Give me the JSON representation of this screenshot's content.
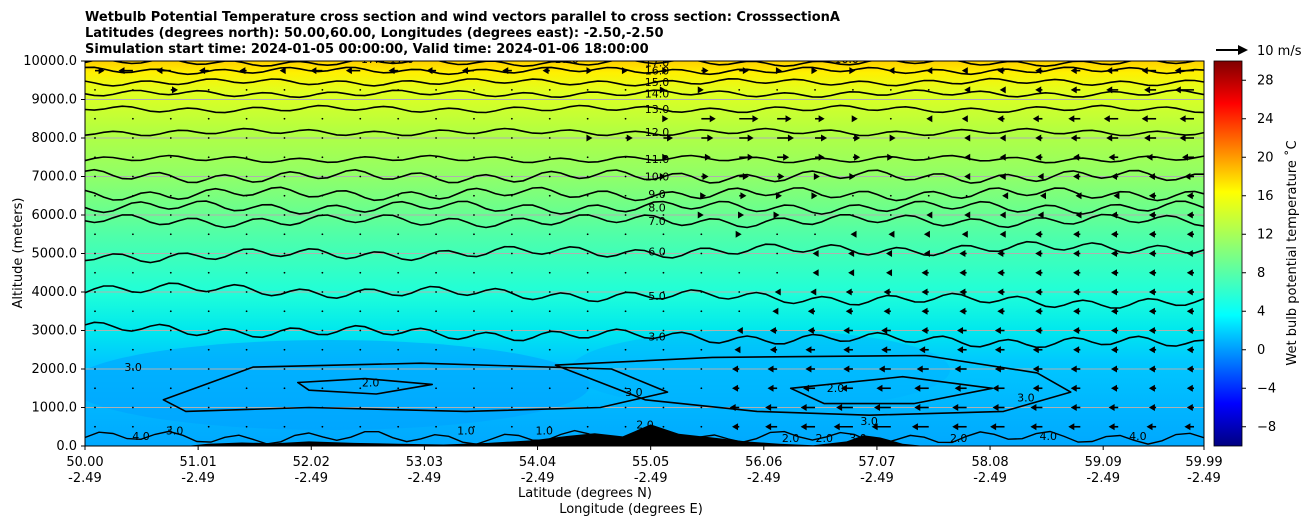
{
  "chart_data": {
    "type": "heatmap",
    "title_lines": [
      "Wetbulb Potential Temperature cross section and wind vectors parallel to cross section: CrosssectionA",
      "Latitudes (degrees north): 50.00,60.00, Longitudes (degrees east): -2.50,-2.50",
      "Simulation start time: 2024-01-05 00:00:00, Valid time: 2024-01-06 18:00:00"
    ],
    "ylabel": "Altitude (meters)",
    "xlabel": "Latitude (degrees N)",
    "xlabel2": "Longitude (degrees E)",
    "x_ticks": [
      {
        "lat": "50.00",
        "lon": "-2.49"
      },
      {
        "lat": "51.01",
        "lon": "-2.49"
      },
      {
        "lat": "52.02",
        "lon": "-2.49"
      },
      {
        "lat": "53.03",
        "lon": "-2.49"
      },
      {
        "lat": "54.04",
        "lon": "-2.49"
      },
      {
        "lat": "55.05",
        "lon": "-2.49"
      },
      {
        "lat": "56.06",
        "lon": "-2.49"
      },
      {
        "lat": "57.07",
        "lon": "-2.49"
      },
      {
        "lat": "58.08",
        "lon": "-2.49"
      },
      {
        "lat": "59.09",
        "lon": "-2.49"
      },
      {
        "lat": "59.99",
        "lon": "-2.49"
      }
    ],
    "xlim": [
      50.0,
      59.99
    ],
    "y_ticks": [
      "0.0",
      "1000.0",
      "2000.0",
      "3000.0",
      "4000.0",
      "5000.0",
      "6000.0",
      "7000.0",
      "8000.0",
      "9000.0",
      "10000.0"
    ],
    "ylim": [
      0,
      10000
    ],
    "grid": "horizontal",
    "colorbar": {
      "label": "Wet bulb potential temperature ˚C",
      "ticks": [
        "28",
        "24",
        "20",
        "16",
        "12",
        "8",
        "4",
        "0",
        "−4",
        "−8"
      ],
      "range": [
        -10,
        30
      ],
      "colormap": "jet"
    },
    "quiver_key": {
      "label": "10 m/s"
    },
    "contours": [
      {
        "value": 17.0,
        "label": "17.0",
        "alt": 9960
      },
      {
        "value": 16.0,
        "label": "16.0",
        "alt": 9750
      },
      {
        "value": 15.0,
        "label": "15.0",
        "alt": 9450
      },
      {
        "value": 14.0,
        "label": "14.0",
        "alt": 9150
      },
      {
        "value": 13.0,
        "label": "13.0",
        "alt": 8750
      },
      {
        "value": 12.0,
        "label": "12.0",
        "alt": 8150
      },
      {
        "value": 11.0,
        "label": "11.0",
        "alt": 7450
      },
      {
        "value": 10.0,
        "label": "10.0",
        "alt": 7000
      },
      {
        "value": 9.0,
        "label": "9.0",
        "alt": 6550
      },
      {
        "value": 8.0,
        "label": "8.0",
        "alt": 6200
      },
      {
        "value": 7.0,
        "label": "7.0",
        "alt": 5850
      },
      {
        "value": 6.0,
        "label": "6.0",
        "alt": 5050
      },
      {
        "value": 5.0,
        "label": "5.0",
        "alt": 3900
      },
      {
        "value": 3.0,
        "label": "3.0",
        "alt": 2850
      }
    ],
    "extra_labels": [
      {
        "text": "17.0-17.0",
        "lat": 52.7,
        "alt": 9950
      },
      {
        "text": "17.0",
        "lat": 54.3,
        "alt": 9950
      },
      {
        "text": "16.0",
        "lat": 56.8,
        "alt": 9950
      },
      {
        "text": "3.0",
        "lat": 50.43,
        "alt": 1950
      },
      {
        "text": "2.0",
        "lat": 52.55,
        "alt": 1550
      },
      {
        "text": "3.0",
        "lat": 54.9,
        "alt": 1300
      },
      {
        "text": "2.0",
        "lat": 56.7,
        "alt": 1400
      },
      {
        "text": "3.0",
        "lat": 57.0,
        "alt": 550
      },
      {
        "text": "3.0",
        "lat": 58.4,
        "alt": 1150
      },
      {
        "text": "2.0",
        "lat": 55.0,
        "alt": 450
      },
      {
        "text": "4.0",
        "lat": 50.5,
        "alt": 150
      },
      {
        "text": "3.0",
        "lat": 50.8,
        "alt": 300
      },
      {
        "text": "1.0",
        "lat": 53.4,
        "alt": 300
      },
      {
        "text": "1.0",
        "lat": 54.1,
        "alt": 300
      },
      {
        "text": "2.0",
        "lat": 56.3,
        "alt": 100
      },
      {
        "text": "2.0",
        "lat": 56.6,
        "alt": 100
      },
      {
        "text": "3.0",
        "lat": 56.9,
        "alt": 100
      },
      {
        "text": "2.0",
        "lat": 57.8,
        "alt": 100
      },
      {
        "text": "4.0",
        "lat": 58.6,
        "alt": 150
      },
      {
        "text": "4.0",
        "lat": 59.4,
        "alt": 150
      }
    ],
    "terrain": [
      [
        50.9,
        0
      ],
      [
        51.1,
        60
      ],
      [
        51.4,
        90
      ],
      [
        51.7,
        70
      ],
      [
        52.0,
        120
      ],
      [
        52.4,
        80
      ],
      [
        52.8,
        60
      ],
      [
        53.2,
        40
      ],
      [
        53.6,
        80
      ],
      [
        54.0,
        150
      ],
      [
        54.3,
        260
      ],
      [
        54.55,
        330
      ],
      [
        54.8,
        250
      ],
      [
        55.05,
        560
      ],
      [
        55.3,
        320
      ],
      [
        55.6,
        220
      ],
      [
        55.9,
        120
      ],
      [
        56.2,
        60
      ],
      [
        56.5,
        20
      ],
      [
        56.8,
        120
      ],
      [
        56.95,
        280
      ],
      [
        57.1,
        220
      ],
      [
        57.3,
        60
      ],
      [
        57.5,
        0
      ]
    ],
    "wind_rows": [
      {
        "alt": 9750,
        "u": [
          0.4,
          -0.6,
          -0.6,
          -0.4,
          -0.3,
          -0.2,
          -0.5,
          -0.6,
          -0.4,
          -0.4,
          -0.5,
          -0.4,
          -0.3,
          0.2,
          0.1,
          0.2,
          0.3,
          0.4,
          0.2,
          0.1,
          0.1,
          -0.1,
          -0.1,
          -0.2,
          -0.3,
          -0.3,
          -0.4,
          -0.5,
          -0.6,
          -0.8
        ]
      },
      {
        "alt": 9250,
        "u": [
          0,
          0,
          0.3,
          0,
          0,
          0,
          0,
          0,
          0,
          0,
          0,
          0,
          0,
          0,
          0,
          0.1,
          0.1,
          0,
          0,
          0,
          0,
          0,
          0,
          -0.1,
          -0.2,
          -0.3,
          -0.4,
          -0.5,
          -0.5,
          -0.8
        ]
      },
      {
        "alt": 8500,
        "u": [
          0,
          0,
          0,
          0,
          0,
          0,
          0,
          0,
          0,
          0,
          0,
          0,
          0,
          0,
          0,
          0.2,
          0.6,
          0.8,
          0.6,
          0.4,
          0.2,
          0,
          -0.1,
          -0.2,
          -0.3,
          -0.4,
          -0.5,
          -0.6,
          -0.6,
          -0.6
        ]
      },
      {
        "alt": 8000,
        "u": [
          0,
          0,
          0,
          0,
          0,
          0,
          0,
          0,
          0,
          0,
          0,
          0,
          0,
          0.2,
          0.3,
          0.4,
          0.5,
          0.6,
          0.7,
          0.5,
          0.3,
          0.2,
          0,
          -0.1,
          -0.2,
          -0.3,
          -0.4,
          -0.5,
          -0.5,
          -0.6
        ]
      },
      {
        "alt": 7500,
        "u": [
          0,
          0,
          0,
          0,
          0,
          0,
          0,
          0,
          0,
          0,
          0,
          0,
          0,
          0,
          0,
          0.2,
          0.4,
          0.6,
          0.5,
          0.4,
          0.3,
          0.1,
          0,
          -0.1,
          -0.2,
          -0.3,
          -0.3,
          -0.4,
          -0.4,
          -0.5
        ]
      },
      {
        "alt": 7000,
        "u": [
          0,
          0,
          0,
          0,
          0,
          0,
          0,
          0,
          0,
          0,
          0,
          0,
          0,
          0,
          0,
          0.1,
          0.3,
          0.4,
          0.3,
          0.2,
          0.1,
          0,
          0,
          -0.1,
          -0.2,
          -0.2,
          -0.3,
          -0.3,
          -0.3,
          -0.4
        ]
      },
      {
        "alt": 6500,
        "u": [
          0,
          0,
          0,
          0,
          0,
          0,
          0,
          0,
          0,
          0,
          0,
          0,
          0,
          0,
          0,
          0,
          0.2,
          0.3,
          0.2,
          0.1,
          0,
          0,
          0,
          0,
          -0.1,
          -0.1,
          -0.2,
          -0.2,
          -0.3,
          -0.3
        ]
      },
      {
        "alt": 6000,
        "u": [
          0,
          0,
          0,
          0,
          0,
          0,
          0,
          0,
          0,
          0,
          0,
          0,
          0,
          0,
          0,
          0,
          0.1,
          0.2,
          0.1,
          0,
          0,
          0,
          -0.1,
          -0.1,
          -0.2,
          -0.2,
          -0.2,
          -0.3,
          -0.3,
          -0.3
        ]
      },
      {
        "alt": 5500,
        "u": [
          0,
          0,
          0,
          0,
          0,
          0,
          0,
          0,
          0,
          0,
          0,
          0,
          0,
          0,
          0,
          0,
          0,
          0.1,
          0,
          0,
          -0.1,
          -0.1,
          -0.2,
          -0.2,
          -0.2,
          -0.3,
          -0.3,
          -0.3,
          -0.3,
          -0.3
        ]
      },
      {
        "alt": 5000,
        "u": [
          0,
          0,
          0,
          0,
          0,
          0,
          0,
          0,
          0,
          0,
          0,
          0,
          0,
          0,
          0,
          0,
          0,
          0,
          0,
          -0.1,
          -0.2,
          -0.2,
          -0.2,
          -0.3,
          -0.3,
          -0.3,
          -0.3,
          -0.3,
          -0.3,
          -0.3
        ]
      },
      {
        "alt": 4500,
        "u": [
          0,
          0,
          0,
          0,
          0,
          0,
          0,
          0,
          0,
          0,
          0,
          0,
          0,
          0,
          0,
          0,
          0,
          0,
          0,
          -0.1,
          -0.2,
          -0.2,
          -0.3,
          -0.3,
          -0.3,
          -0.3,
          -0.3,
          -0.3,
          -0.3,
          -0.3
        ]
      },
      {
        "alt": 4000,
        "u": [
          0,
          0,
          0,
          0,
          0,
          0,
          0,
          0,
          0,
          0,
          0,
          0,
          0,
          0,
          0,
          0,
          0,
          0,
          -0.1,
          -0.2,
          -0.3,
          -0.3,
          -0.3,
          -0.3,
          -0.3,
          -0.3,
          -0.3,
          -0.3,
          -0.3,
          -0.3
        ]
      },
      {
        "alt": 3500,
        "u": [
          0,
          0,
          0,
          0,
          0,
          0,
          0,
          0,
          0,
          0,
          0,
          0,
          0,
          0,
          0,
          0,
          0,
          0,
          -0.2,
          -0.3,
          -0.3,
          -0.3,
          -0.3,
          -0.3,
          -0.3,
          -0.3,
          -0.3,
          -0.3,
          -0.3,
          -0.3
        ]
      },
      {
        "alt": 3000,
        "u": [
          0,
          0,
          0,
          0,
          0,
          0,
          0,
          0,
          0,
          0,
          0,
          0,
          0,
          0,
          0,
          0,
          0,
          -0.1,
          -0.3,
          -0.3,
          -0.4,
          -0.4,
          -0.3,
          -0.4,
          -0.4,
          -0.3,
          -0.3,
          -0.3,
          -0.3,
          -0.3
        ]
      },
      {
        "alt": 2500,
        "u": [
          0,
          0,
          0,
          0,
          0,
          0,
          0,
          0,
          0,
          0,
          0,
          0,
          0,
          0,
          0,
          0,
          0,
          -0.2,
          -0.3,
          -0.4,
          -0.4,
          -0.4,
          -0.4,
          -0.4,
          -0.4,
          -0.4,
          -0.3,
          -0.3,
          -0.3,
          -0.3
        ]
      },
      {
        "alt": 2000,
        "u": [
          0,
          0,
          0,
          0,
          0,
          0,
          0,
          0,
          0,
          0,
          0,
          0,
          0,
          0,
          0,
          0,
          0,
          -0.3,
          -0.4,
          -0.4,
          -0.4,
          -0.5,
          -0.5,
          -0.5,
          -0.4,
          -0.4,
          -0.4,
          -0.3,
          -0.3,
          -0.3
        ]
      },
      {
        "alt": 1500,
        "u": [
          0,
          0,
          0,
          0,
          0,
          0,
          0,
          0,
          0,
          0,
          0,
          0,
          0,
          0,
          0,
          0,
          0,
          -0.3,
          -0.4,
          -0.5,
          -0.5,
          -0.6,
          -0.6,
          -0.5,
          -0.5,
          -0.4,
          -0.4,
          -0.3,
          -0.3,
          -0.3
        ]
      },
      {
        "alt": 1000,
        "u": [
          0,
          0,
          0,
          0,
          0,
          0,
          0,
          0,
          0,
          0,
          0,
          0,
          0,
          0,
          0,
          0,
          0,
          -0.4,
          -0.5,
          -0.6,
          -0.7,
          -0.7,
          -0.6,
          -0.6,
          -0.5,
          -0.5,
          -0.4,
          -0.4,
          -0.3,
          -0.3
        ]
      },
      {
        "alt": 500,
        "u": [
          0,
          0,
          0,
          0,
          0,
          0,
          0,
          0,
          0,
          0,
          0,
          0,
          0,
          0,
          0,
          0,
          0,
          -0.3,
          -0.5,
          -0.6,
          -0.8,
          -0.8,
          -0.7,
          -0.6,
          -0.6,
          -0.5,
          -0.5,
          -0.4,
          -0.4,
          -0.4
        ]
      }
    ]
  }
}
